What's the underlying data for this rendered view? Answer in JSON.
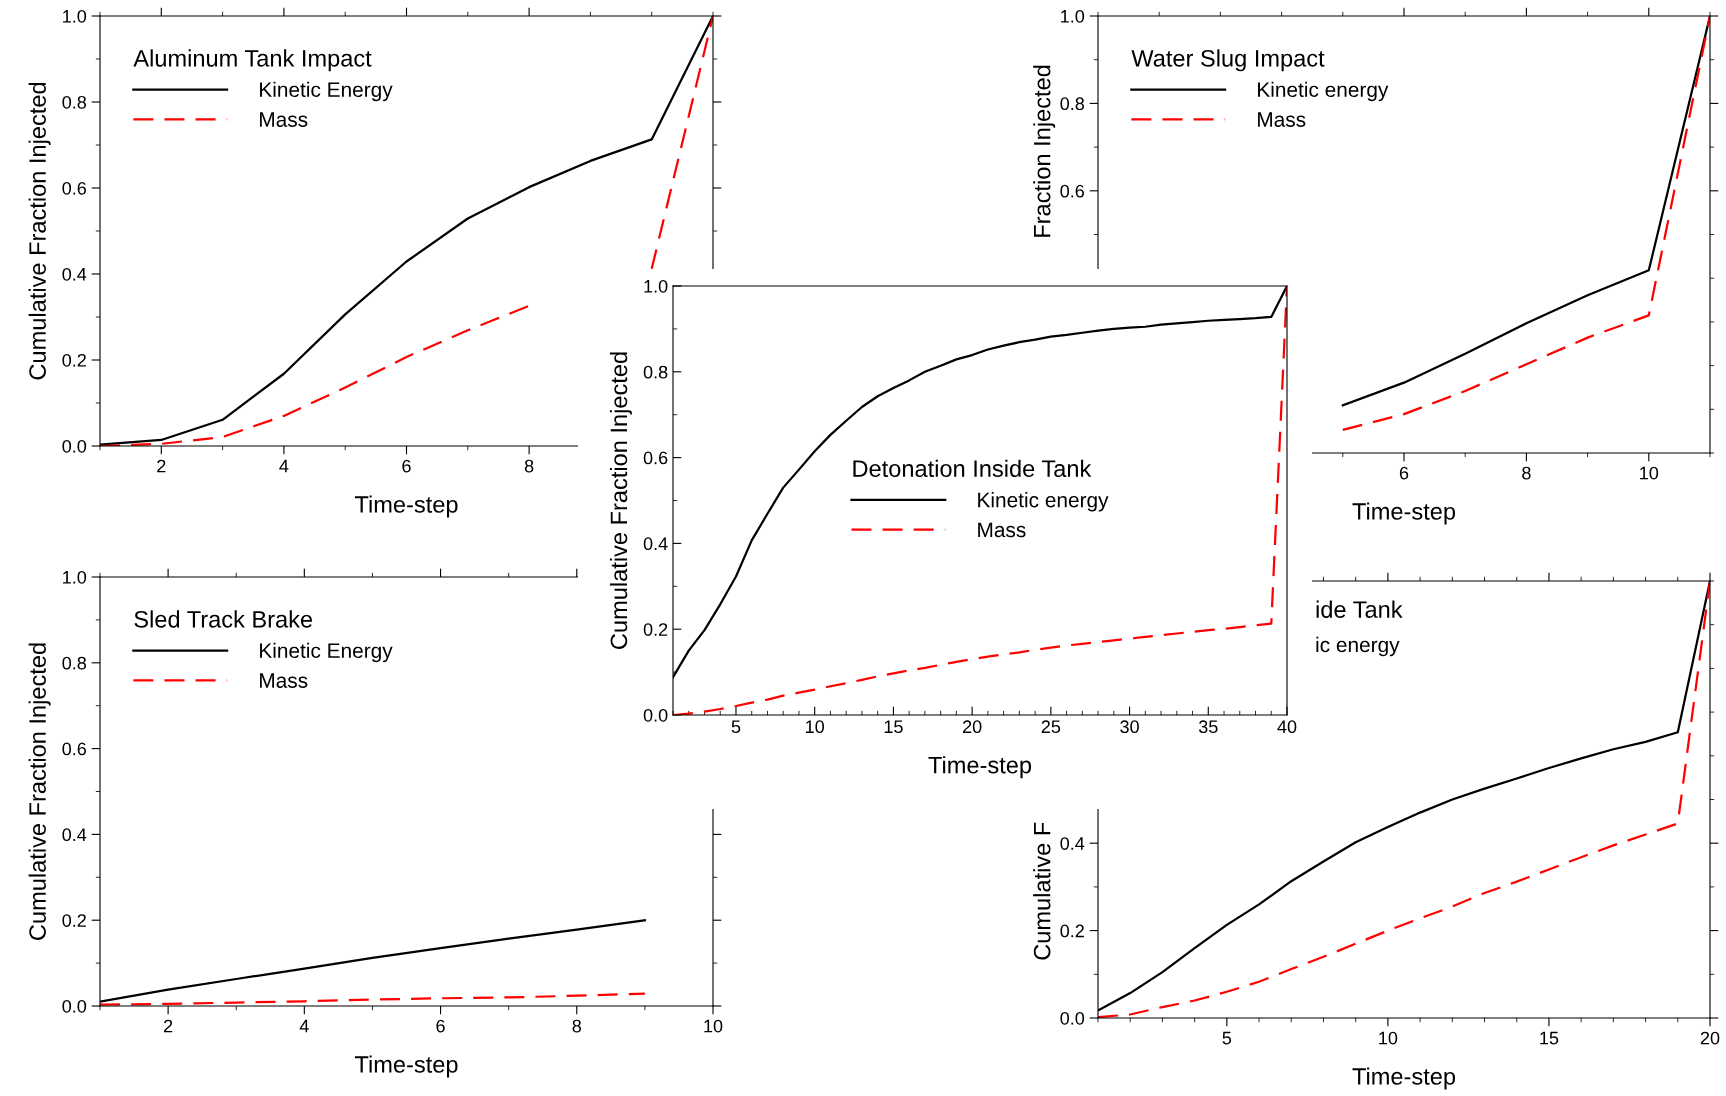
{
  "chart_data": [
    {
      "type": "line",
      "title": "Aluminum Tank Impact",
      "xlabel": "Time-step",
      "ylabel": "Cumulative Fraction Injected",
      "legend": "top left",
      "x": [
        1,
        2,
        3,
        4,
        5,
        6,
        7,
        8,
        9,
        10,
        11
      ],
      "xlim": [
        1,
        11
      ],
      "xticks": [
        {
          "value": 1,
          "label": null
        },
        2,
        {
          "value": 3,
          "label": null
        },
        4,
        {
          "value": 5,
          "label": null
        },
        6,
        {
          "value": 7,
          "label": null
        },
        8,
        {
          "value": 9,
          "label": null
        },
        {
          "value": 10,
          "label": null
        },
        {
          "value": 11,
          "label": null
        }
      ],
      "ylim": [
        0,
        1
      ],
      "yticks": [
        "0.0",
        {
          "value": 0.1,
          "label": null
        },
        {
          "value": 0.2,
          "label": "0.2"
        },
        {
          "value": 0.3,
          "label": null
        },
        {
          "value": 0.4,
          "label": "0.4"
        },
        {
          "value": 0.5,
          "label": null
        },
        {
          "value": 0.6,
          "label": "0.6"
        },
        {
          "value": 0.7,
          "label": null
        },
        {
          "value": 0.8,
          "label": "0.8"
        },
        {
          "value": 0.9,
          "label": null
        },
        {
          "value": 1,
          "label": "1.0"
        }
      ],
      "series": [
        {
          "name": "Kinetic Energy",
          "color": "#000000",
          "line_style": "solid",
          "values": [
            0.003,
            0.014,
            0.061,
            0.168,
            0.306,
            0.429,
            0.529,
            0.602,
            0.663,
            0.713,
            1.0
          ]
        },
        {
          "name": "Mass",
          "color": "#ff0000",
          "line_style": "dashed",
          "values": [
            0.0,
            0.005,
            0.021,
            0.07,
            0.136,
            0.207,
            0.269,
            0.326,
            null,
            0.412,
            1.0
          ]
        }
      ]
    },
    {
      "type": "line",
      "title": "Water Slug Impact",
      "xlabel": "Time-step",
      "ylabel": "Fraction Injected",
      "legend": "top left",
      "x": [
        5,
        6,
        7,
        8,
        9,
        10,
        11
      ],
      "xlim": [
        1,
        11
      ],
      "xticks": [
        {
          "value": 1,
          "label": null
        },
        {
          "value": 2,
          "label": null
        },
        {
          "value": 3,
          "label": null
        },
        {
          "value": 4,
          "label": null
        },
        {
          "value": 5,
          "label": null
        },
        6,
        {
          "value": 7,
          "label": null
        },
        8,
        {
          "value": 9,
          "label": null
        },
        10,
        {
          "value": 11,
          "label": null
        }
      ],
      "ylim": [
        0,
        1
      ],
      "yticks": [
        {
          "value": 0,
          "label": null
        },
        {
          "value": 0.1,
          "label": null
        },
        {
          "value": 0.2,
          "label": null
        },
        {
          "value": 0.3,
          "label": null
        },
        {
          "value": 0.4,
          "label": null
        },
        {
          "value": 0.5,
          "label": null
        },
        {
          "value": 0.6,
          "label": "0.6"
        },
        {
          "value": 0.7,
          "label": null
        },
        {
          "value": 0.8,
          "label": "0.8"
        },
        {
          "value": 0.9,
          "label": null
        },
        {
          "value": 1,
          "label": "1.0"
        }
      ],
      "series": [
        {
          "name": "Kinetic energy",
          "color": "#000000",
          "line_style": "solid",
          "values": [
            0.109,
            0.161,
            0.227,
            0.297,
            0.361,
            0.418,
            1.0
          ]
        },
        {
          "name": "Mass",
          "color": "#ff0000",
          "line_style": "dashed",
          "values": [
            0.053,
            0.089,
            0.142,
            0.203,
            0.264,
            0.315,
            1.0
          ]
        }
      ]
    },
    {
      "type": "line",
      "title": "Detonation Inside Tank",
      "xlabel": "Time-step",
      "ylabel": "Cumulative Fraction Injected",
      "legend": "center",
      "x": [
        1,
        2,
        3,
        4,
        5,
        6,
        7,
        8,
        9,
        10,
        11,
        12,
        13,
        14,
        15,
        16,
        17,
        18,
        19,
        20,
        21,
        22,
        23,
        24,
        25,
        26,
        27,
        28,
        29,
        30,
        31,
        32,
        33,
        34,
        35,
        36,
        37,
        38,
        39,
        40
      ],
      "xlim": [
        1,
        40
      ],
      "xticks": [
        {
          "value": 1,
          "label": null
        },
        {
          "value": 2,
          "label": null
        },
        {
          "value": 3,
          "label": null
        },
        {
          "value": 4,
          "label": null
        },
        5,
        {
          "value": 6,
          "label": null
        },
        {
          "value": 7,
          "label": null
        },
        {
          "value": 8,
          "label": null
        },
        {
          "value": 9,
          "label": null
        },
        10,
        {
          "value": 11,
          "label": null
        },
        {
          "value": 12,
          "label": null
        },
        {
          "value": 13,
          "label": null
        },
        {
          "value": 14,
          "label": null
        },
        15,
        {
          "value": 16,
          "label": null
        },
        {
          "value": 17,
          "label": null
        },
        {
          "value": 18,
          "label": null
        },
        {
          "value": 19,
          "label": null
        },
        20,
        {
          "value": 21,
          "label": null
        },
        {
          "value": 22,
          "label": null
        },
        {
          "value": 23,
          "label": null
        },
        {
          "value": 24,
          "label": null
        },
        25,
        {
          "value": 26,
          "label": null
        },
        {
          "value": 27,
          "label": null
        },
        {
          "value": 28,
          "label": null
        },
        {
          "value": 29,
          "label": null
        },
        30,
        {
          "value": 31,
          "label": null
        },
        {
          "value": 32,
          "label": null
        },
        {
          "value": 33,
          "label": null
        },
        {
          "value": 34,
          "label": null
        },
        35,
        {
          "value": 36,
          "label": null
        },
        {
          "value": 37,
          "label": null
        },
        {
          "value": 38,
          "label": null
        },
        {
          "value": 39,
          "label": null
        },
        40
      ],
      "ylim": [
        0,
        1
      ],
      "yticks": [
        {
          "value": 0,
          "label": "0.0"
        },
        {
          "value": 0.1,
          "label": null
        },
        {
          "value": 0.2,
          "label": "0.2"
        },
        {
          "value": 0.3,
          "label": null
        },
        {
          "value": 0.4,
          "label": "0.4"
        },
        {
          "value": 0.5,
          "label": null
        },
        {
          "value": 0.6,
          "label": "0.6"
        },
        {
          "value": 0.7,
          "label": null
        },
        {
          "value": 0.8,
          "label": "0.8"
        },
        {
          "value": 0.9,
          "label": null
        },
        {
          "value": 1,
          "label": "1.0"
        }
      ],
      "series": [
        {
          "name": "Kinetic energy",
          "color": "#000000",
          "line_style": "solid",
          "values": [
            0.088,
            0.15,
            0.198,
            0.258,
            0.323,
            0.407,
            0.469,
            0.53,
            0.572,
            0.615,
            0.653,
            0.686,
            0.718,
            0.743,
            0.762,
            0.78,
            0.8,
            0.814,
            0.829,
            0.839,
            0.852,
            0.861,
            0.869,
            0.875,
            0.882,
            0.886,
            0.891,
            0.896,
            0.9,
            0.903,
            0.905,
            0.91,
            0.913,
            0.916,
            0.919,
            0.921,
            0.923,
            0.925,
            0.928,
            1.0
          ]
        },
        {
          "name": "Mass",
          "color": "#ff0000",
          "line_style": "dashed",
          "values": [
            0.0,
            0.003,
            0.008,
            0.014,
            0.021,
            0.029,
            0.036,
            0.045,
            0.052,
            0.059,
            0.067,
            0.074,
            0.082,
            0.09,
            0.097,
            0.104,
            0.11,
            0.117,
            0.124,
            0.13,
            0.136,
            0.141,
            0.146,
            0.152,
            0.157,
            0.162,
            0.166,
            0.17,
            0.174,
            0.178,
            0.182,
            0.186,
            0.19,
            0.194,
            0.198,
            0.201,
            0.205,
            0.209,
            0.213,
            1.0
          ]
        }
      ]
    },
    {
      "type": "line",
      "title": "Sled Track Brake",
      "xlabel": "Time-step",
      "ylabel": "Cumulative Fraction Injected",
      "legend": "top left",
      "x": [
        1,
        2,
        3,
        4,
        5,
        6,
        7,
        8,
        9
      ],
      "xlim": [
        1,
        10
      ],
      "xticks": [
        {
          "value": 1,
          "label": null
        },
        2,
        {
          "value": 3,
          "label": null
        },
        4,
        {
          "value": 5,
          "label": null
        },
        6,
        {
          "value": 7,
          "label": null
        },
        8,
        {
          "value": 9,
          "label": null
        },
        10
      ],
      "ylim": [
        0,
        1
      ],
      "yticks": [
        {
          "value": 0,
          "label": "0.0"
        },
        {
          "value": 0.1,
          "label": null
        },
        {
          "value": 0.2,
          "label": "0.2"
        },
        {
          "value": 0.3,
          "label": null
        },
        {
          "value": 0.4,
          "label": "0.4"
        },
        {
          "value": 0.5,
          "label": null
        },
        {
          "value": 0.6,
          "label": "0.6"
        },
        {
          "value": 0.7,
          "label": null
        },
        {
          "value": 0.8,
          "label": "0.8"
        },
        {
          "value": 0.9,
          "label": null
        },
        {
          "value": 1,
          "label": "1.0"
        }
      ],
      "series": [
        {
          "name": "Kinetic Energy",
          "color": "#000000",
          "line_style": "solid",
          "values": [
            0.01,
            0.038,
            0.063,
            0.087,
            0.112,
            0.135,
            0.157,
            0.178,
            0.2
          ]
        },
        {
          "name": "Mass",
          "color": "#ff0000",
          "line_style": "dashed",
          "values": [
            0.003,
            0.005,
            0.008,
            0.011,
            0.015,
            0.018,
            0.02,
            0.024,
            0.029
          ]
        }
      ]
    },
    {
      "type": "line",
      "title": "ide Tank",
      "xlabel": "Time-step",
      "ylabel": "Cumulative F",
      "annotations": [
        "ic energy"
      ],
      "x": [
        1,
        2,
        3,
        4,
        5,
        6,
        7,
        8,
        9,
        10,
        11,
        12,
        13,
        14,
        15,
        16,
        17,
        18,
        19,
        20
      ],
      "xlim": [
        1,
        20
      ],
      "xticks": [
        {
          "value": 1,
          "label": null
        },
        {
          "value": 2,
          "label": null
        },
        {
          "value": 3,
          "label": null
        },
        {
          "value": 4,
          "label": null
        },
        5,
        {
          "value": 6,
          "label": null
        },
        {
          "value": 7,
          "label": null
        },
        {
          "value": 8,
          "label": null
        },
        {
          "value": 9,
          "label": null
        },
        10,
        {
          "value": 11,
          "label": null
        },
        {
          "value": 12,
          "label": null
        },
        {
          "value": 13,
          "label": null
        },
        {
          "value": 14,
          "label": null
        },
        15,
        {
          "value": 16,
          "label": null
        },
        {
          "value": 17,
          "label": null
        },
        {
          "value": 18,
          "label": null
        },
        {
          "value": 19,
          "label": null
        },
        20
      ],
      "ylim": [
        0,
        1
      ],
      "yticks": [
        {
          "value": 0,
          "label": "0.0"
        },
        {
          "value": 0.1,
          "label": null
        },
        {
          "value": 0.2,
          "label": "0.2"
        },
        {
          "value": 0.3,
          "label": null
        },
        {
          "value": 0.4,
          "label": "0.4"
        },
        {
          "value": 0.5,
          "label": null
        },
        {
          "value": 0.6,
          "label": null
        },
        {
          "value": 0.7,
          "label": null
        },
        {
          "value": 0.8,
          "label": null
        },
        {
          "value": 0.9,
          "label": null
        },
        {
          "value": 1,
          "label": null
        }
      ],
      "series": [
        {
          "color": "#000000",
          "line_style": "solid",
          "values": [
            0.017,
            0.057,
            0.105,
            0.16,
            0.213,
            0.26,
            0.313,
            0.358,
            0.402,
            0.437,
            0.47,
            0.5,
            0.525,
            0.548,
            0.572,
            0.594,
            0.615,
            0.632,
            0.654,
            1.0
          ]
        },
        {
          "color": "#ff0000",
          "line_style": "dashed",
          "values": [
            0.002,
            0.008,
            0.025,
            0.04,
            0.06,
            0.083,
            0.112,
            0.14,
            0.17,
            0.2,
            0.228,
            0.255,
            0.286,
            0.312,
            0.34,
            0.368,
            0.395,
            0.42,
            0.445,
            1.0
          ]
        }
      ]
    }
  ]
}
